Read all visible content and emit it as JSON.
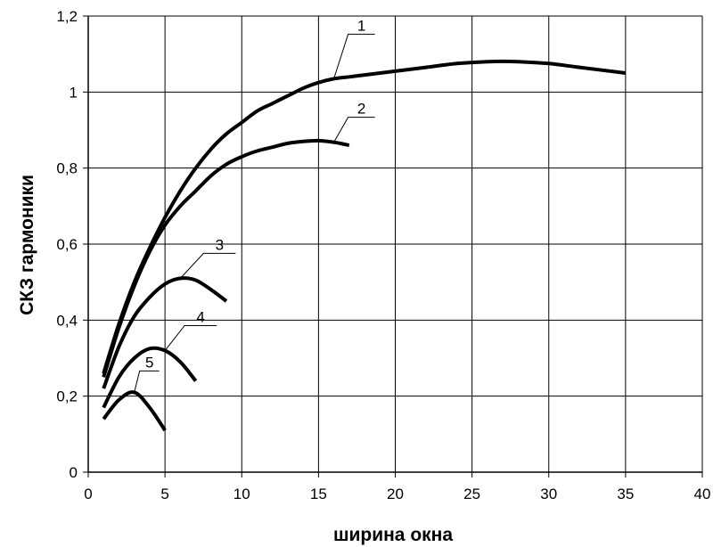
{
  "chart_data": {
    "type": "line",
    "title": "",
    "xlabel": "ширина окна",
    "ylabel": "СКЗ гармоники",
    "xlim": [
      0,
      40
    ],
    "ylim": [
      0,
      1.2
    ],
    "x_ticks": [
      "0",
      "5",
      "10",
      "15",
      "20",
      "25",
      "30",
      "35",
      "40"
    ],
    "y_ticks": [
      "0",
      "0,2",
      "0,4",
      "0,6",
      "0,8",
      "1",
      "1,2"
    ],
    "grid": true,
    "legend": "none",
    "series": [
      {
        "label": "1",
        "x": [
          1,
          2,
          3,
          4,
          5,
          6,
          7,
          8,
          9,
          10,
          11,
          12,
          13,
          14,
          15,
          16,
          17,
          18,
          20,
          22,
          24,
          26,
          28,
          30,
          32,
          35
        ],
        "y": [
          0.26,
          0.39,
          0.5,
          0.59,
          0.67,
          0.74,
          0.8,
          0.85,
          0.89,
          0.92,
          0.95,
          0.97,
          0.99,
          1.01,
          1.025,
          1.035,
          1.04,
          1.045,
          1.055,
          1.065,
          1.075,
          1.08,
          1.08,
          1.075,
          1.065,
          1.05
        ]
      },
      {
        "label": "2",
        "x": [
          1,
          2,
          3,
          4,
          5,
          6,
          7,
          8,
          9,
          10,
          11,
          12,
          13,
          14,
          15,
          16,
          17
        ],
        "y": [
          0.25,
          0.38,
          0.49,
          0.58,
          0.65,
          0.7,
          0.74,
          0.78,
          0.81,
          0.83,
          0.845,
          0.855,
          0.865,
          0.87,
          0.872,
          0.868,
          0.86
        ]
      },
      {
        "label": "3",
        "x": [
          1,
          2,
          3,
          4,
          5,
          6,
          7,
          8,
          9
        ],
        "y": [
          0.22,
          0.33,
          0.41,
          0.46,
          0.495,
          0.51,
          0.505,
          0.48,
          0.45
        ]
      },
      {
        "label": "4",
        "x": [
          1,
          2,
          3,
          4,
          5,
          6,
          7
        ],
        "y": [
          0.17,
          0.25,
          0.3,
          0.325,
          0.32,
          0.29,
          0.24
        ]
      },
      {
        "label": "5",
        "x": [
          1,
          2,
          3,
          4,
          5
        ],
        "y": [
          0.14,
          0.19,
          0.21,
          0.17,
          0.11
        ]
      }
    ]
  }
}
